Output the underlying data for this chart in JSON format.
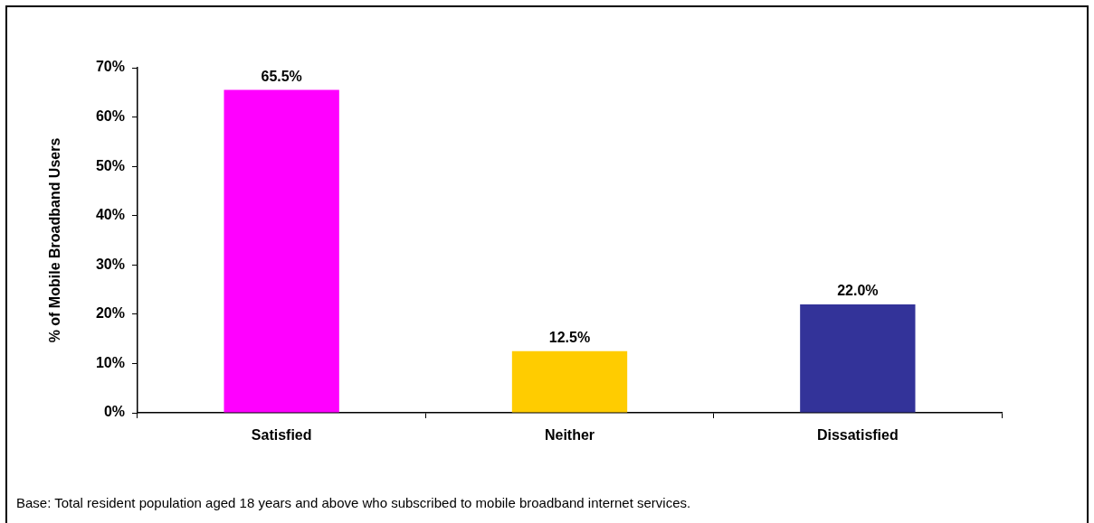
{
  "chart_data": {
    "type": "bar",
    "ylabel": "% of Mobile Broadband Users",
    "categories": [
      "Satisfied",
      "Neither",
      "Dissatisfied"
    ],
    "values": [
      65.5,
      12.5,
      22.0
    ],
    "colors": [
      "#ff00ff",
      "#ffcc00",
      "#333399"
    ],
    "value_labels": [
      "65.5%",
      "12.5%",
      "22.0%"
    ],
    "ylim": [
      0,
      70
    ],
    "yticks": [
      {
        "value": 0,
        "label": "0%"
      },
      {
        "value": 10,
        "label": "10%"
      },
      {
        "value": 20,
        "label": "20%"
      },
      {
        "value": 30,
        "label": "30%"
      },
      {
        "value": 40,
        "label": "40%"
      },
      {
        "value": 50,
        "label": "50%"
      },
      {
        "value": 60,
        "label": "60%"
      },
      {
        "value": 70,
        "label": "70%"
      }
    ],
    "grid": false,
    "legend": false,
    "annotations": [
      "Base: Total resident population aged 18 years and above who subscribed to mobile broadband internet services."
    ]
  }
}
